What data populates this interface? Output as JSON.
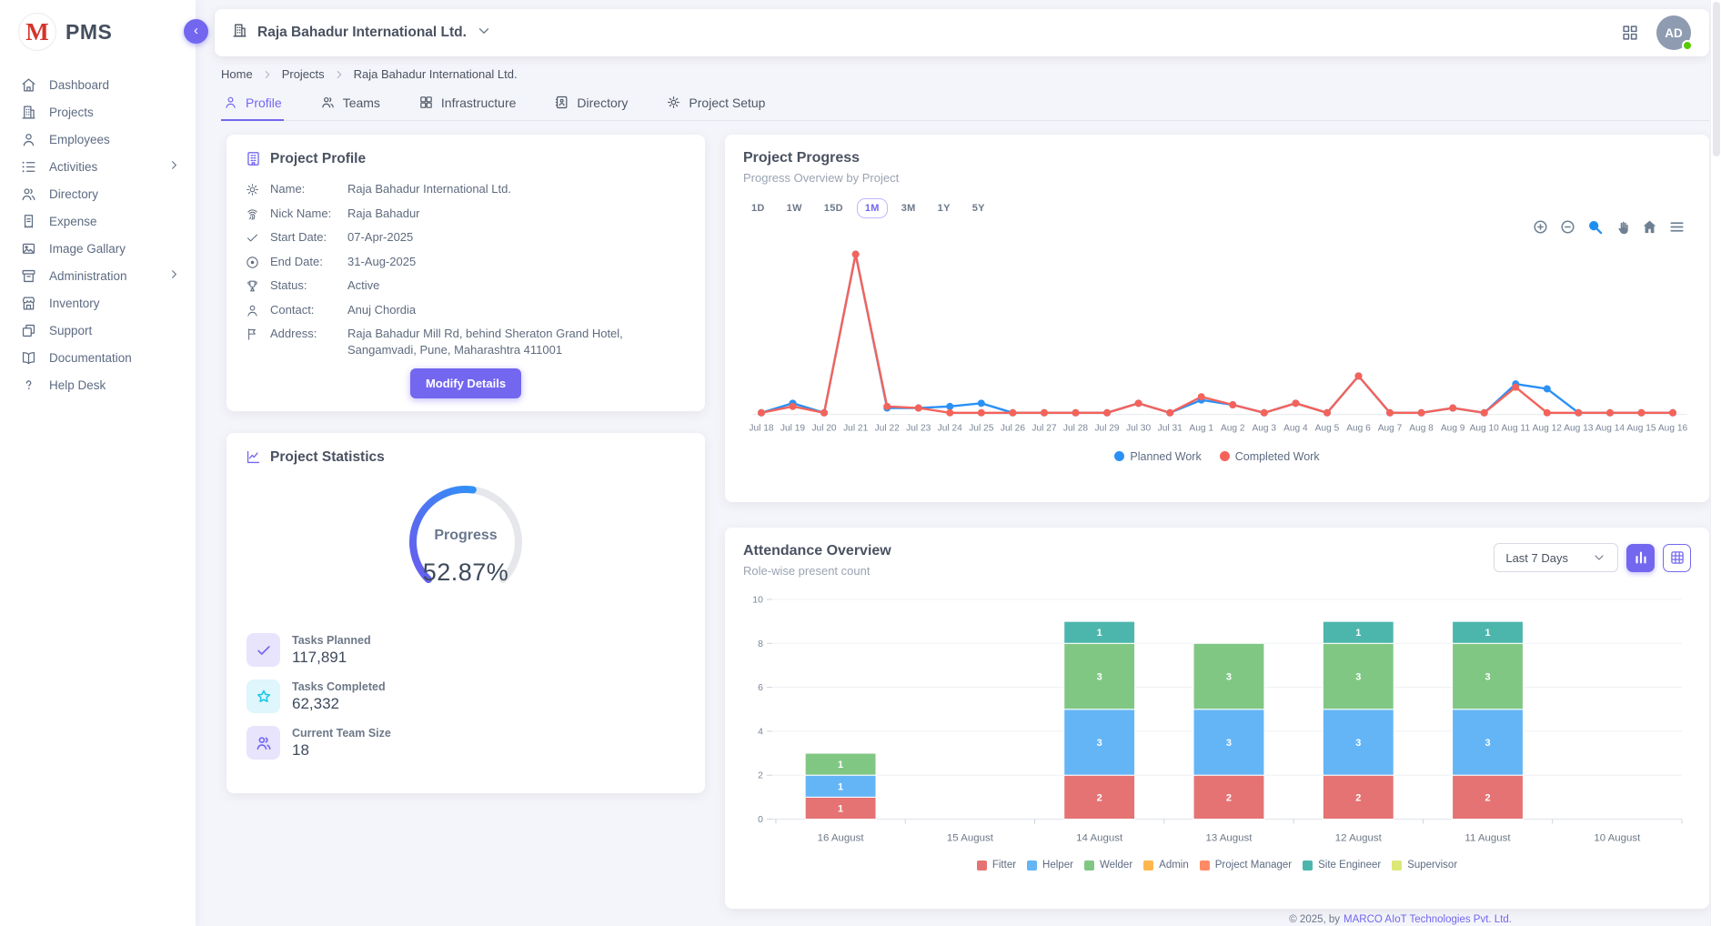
{
  "brand": {
    "name": "PMS",
    "logo_letter": "M",
    "accent_color": "#7367f0"
  },
  "sidebar": {
    "items": [
      {
        "label": "Dashboard",
        "icon": "home-icon",
        "chevron": false
      },
      {
        "label": "Projects",
        "icon": "building-icon",
        "chevron": false
      },
      {
        "label": "Employees",
        "icon": "person-icon",
        "chevron": false
      },
      {
        "label": "Activities",
        "icon": "list-icon",
        "chevron": true
      },
      {
        "label": "Directory",
        "icon": "people-icon",
        "chevron": false
      },
      {
        "label": "Expense",
        "icon": "receipt-icon",
        "chevron": false
      },
      {
        "label": "Image Gallary",
        "icon": "image-icon",
        "chevron": false
      },
      {
        "label": "Administration",
        "icon": "archive-icon",
        "chevron": true
      },
      {
        "label": "Inventory",
        "icon": "store-icon",
        "chevron": false
      },
      {
        "label": "Support",
        "icon": "copy-icon",
        "chevron": false
      },
      {
        "label": "Documentation",
        "icon": "book-icon",
        "chevron": false
      },
      {
        "label": "Help Desk",
        "icon": "help-icon",
        "chevron": false
      }
    ]
  },
  "header": {
    "company": "Raja Bahadur International Ltd.",
    "avatar": "AD"
  },
  "breadcrumb": [
    "Home",
    "Projects",
    "Raja Bahadur International Ltd."
  ],
  "tabs": [
    {
      "label": "Profile",
      "icon": "person-icon",
      "active": true
    },
    {
      "label": "Teams",
      "icon": "people-icon",
      "active": false
    },
    {
      "label": "Infrastructure",
      "icon": "grid-icon",
      "active": false
    },
    {
      "label": "Directory",
      "icon": "contact-book-icon",
      "active": false
    },
    {
      "label": "Project Setup",
      "icon": "gear-icon",
      "active": false
    }
  ],
  "profile": {
    "title": "Project Profile",
    "fields": [
      {
        "icon": "gear-icon",
        "label": "Name:",
        "value": "Raja Bahadur International Ltd."
      },
      {
        "icon": "fingerprint-icon",
        "label": "Nick Name:",
        "value": "Raja Bahadur"
      },
      {
        "icon": "check-icon",
        "label": "Start Date:",
        "value": "07-Apr-2025"
      },
      {
        "icon": "record-icon",
        "label": "End Date:",
        "value": "31-Aug-2025"
      },
      {
        "icon": "trophy-icon",
        "label": "Status:",
        "value": "Active"
      },
      {
        "icon": "person-icon",
        "label": "Contact:",
        "value": "Anuj Chordia"
      },
      {
        "icon": "flag-icon",
        "label": "Address:",
        "value": "Raja Bahadur Mill Rd, behind Sheraton Grand Hotel, Sangamvadi, Pune, Maharashtra 411001"
      }
    ],
    "button": "Modify Details"
  },
  "statistics": {
    "title": "Project Statistics",
    "gauge_label": "Progress",
    "progress_pct": 52.87,
    "progress_text": "52.87%",
    "items": [
      {
        "icon": "check-icon",
        "label": "Tasks Planned",
        "value": "117,891",
        "icon_bg": "#e7e4fc",
        "icon_color": "#7367f0"
      },
      {
        "icon": "star-icon",
        "label": "Tasks Completed",
        "value": "62,332",
        "icon_bg": "#def6fc",
        "icon_color": "#1ec9e8"
      },
      {
        "icon": "people-icon",
        "label": "Current Team Size",
        "value": "18",
        "icon_bg": "#e7e4fc",
        "icon_color": "#7367f0"
      }
    ]
  },
  "progress_card": {
    "title": "Project Progress",
    "subtitle": "Progress Overview by Project",
    "ranges": [
      "1D",
      "1W",
      "15D",
      "1M",
      "3M",
      "1Y",
      "5Y"
    ],
    "active_range": "1M"
  },
  "attendance_card": {
    "title": "Attendance Overview",
    "subtitle": "Role-wise present count",
    "filter": "Last 7 Days"
  },
  "footer": {
    "prefix": "© 2025, by",
    "link": "MARCO AIoT Technologies Pvt. Ltd."
  },
  "chart_data": [
    {
      "type": "line",
      "title": "Project Progress",
      "x": [
        "Jul 18",
        "Jul 19",
        "Jul 20",
        "Jul 21",
        "Jul 22",
        "Jul 23",
        "Jul 24",
        "Jul 25",
        "Jul 26",
        "Jul 27",
        "Jul 28",
        "Jul 29",
        "Jul 30",
        "Jul 31",
        "Aug 1",
        "Aug 2",
        "Aug 3",
        "Aug 4",
        "Aug 5",
        "Aug 6",
        "Aug 7",
        "Aug 8",
        "Aug 9",
        "Aug 10",
        "Aug 11",
        "Aug 12",
        "Aug 13",
        "Aug 14",
        "Aug 15",
        "Aug 16"
      ],
      "series": [
        {
          "name": "Planned Work",
          "color": "#2b90f5",
          "values": [
            1,
            7,
            1,
            100,
            4,
            4,
            5,
            7,
            1,
            1,
            1,
            1,
            7,
            1,
            9,
            6,
            1,
            7,
            1,
            24,
            1,
            1,
            4,
            1,
            19,
            16,
            1,
            1,
            1,
            1
          ]
        },
        {
          "name": "Completed Work",
          "color": "#f4635a",
          "values": [
            1,
            5,
            1,
            100,
            5,
            4,
            1,
            1,
            1,
            1,
            1,
            1,
            7,
            1,
            11,
            6,
            1,
            7,
            1,
            24,
            1,
            1,
            4,
            1,
            17,
            1,
            1,
            1,
            1,
            1
          ]
        }
      ],
      "ylim": [
        0,
        110
      ],
      "yaxis_visible": false,
      "grid": false,
      "legend_position": "bottom"
    },
    {
      "type": "bar",
      "stacked": true,
      "title": "Attendance Overview",
      "categories": [
        "16 August",
        "15 August",
        "14 August",
        "13 August",
        "12 August",
        "11 August",
        "10 August"
      ],
      "series": [
        {
          "name": "Fitter",
          "color": "#e57373",
          "values": [
            1,
            0,
            2,
            2,
            2,
            2,
            0
          ]
        },
        {
          "name": "Helper",
          "color": "#64b5f6",
          "values": [
            1,
            0,
            3,
            3,
            3,
            3,
            0
          ]
        },
        {
          "name": "Welder",
          "color": "#81c784",
          "values": [
            1,
            0,
            3,
            3,
            3,
            3,
            0
          ]
        },
        {
          "name": "Admin",
          "color": "#ffb74d",
          "values": [
            0,
            0,
            0,
            0,
            0,
            0,
            0
          ]
        },
        {
          "name": "Project Manager",
          "color": "#ff8a65",
          "values": [
            0,
            0,
            0,
            0,
            0,
            0,
            0
          ]
        },
        {
          "name": "Site Engineer",
          "color": "#4db6ac",
          "values": [
            0,
            0,
            1,
            0,
            1,
            1,
            0
          ]
        },
        {
          "name": "Supervisor",
          "color": "#dce775",
          "values": [
            0,
            0,
            0,
            0,
            0,
            0,
            0
          ]
        }
      ],
      "ylim": [
        0,
        10
      ],
      "yticks": [
        0,
        2,
        4,
        6,
        8,
        10
      ],
      "grid": true,
      "legend_position": "bottom"
    }
  ]
}
